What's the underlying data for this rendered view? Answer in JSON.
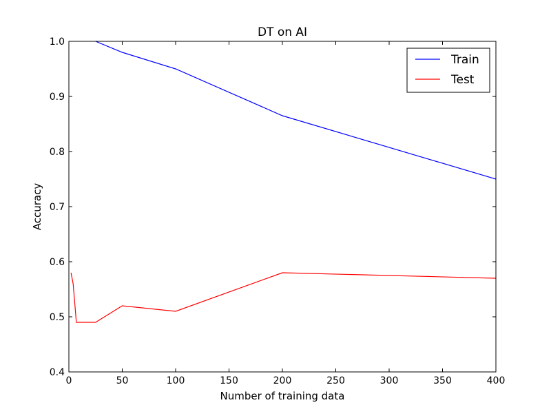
{
  "chart_data": {
    "type": "line",
    "title": "DT on AI",
    "xlabel": "Number of training data",
    "ylabel": "Accuracy",
    "xlim": [
      0,
      400
    ],
    "ylim": [
      0.4,
      1.0
    ],
    "xticks": [
      0,
      50,
      100,
      150,
      200,
      250,
      300,
      350,
      400
    ],
    "xtick_labels": [
      "0",
      "50",
      "100",
      "150",
      "200",
      "250",
      "300",
      "350",
      "400"
    ],
    "yticks": [
      0.4,
      0.5,
      0.6,
      0.7,
      0.8,
      0.9,
      1.0
    ],
    "ytick_labels": [
      "0.4",
      "0.5",
      "0.6",
      "0.7",
      "0.8",
      "0.9",
      "1.0"
    ],
    "grid": false,
    "legend": {
      "placement": "top-right"
    },
    "series": [
      {
        "name": "Train",
        "color": "#0000ff",
        "x": [
          25,
          50,
          100,
          200,
          400
        ],
        "y": [
          1.0,
          0.98,
          0.95,
          0.865,
          0.75
        ]
      },
      {
        "name": "Test",
        "color": "#ff0000",
        "x": [
          2,
          4,
          7,
          25,
          50,
          100,
          200,
          400
        ],
        "y": [
          0.58,
          0.56,
          0.49,
          0.49,
          0.52,
          0.51,
          0.58,
          0.57
        ]
      }
    ]
  }
}
